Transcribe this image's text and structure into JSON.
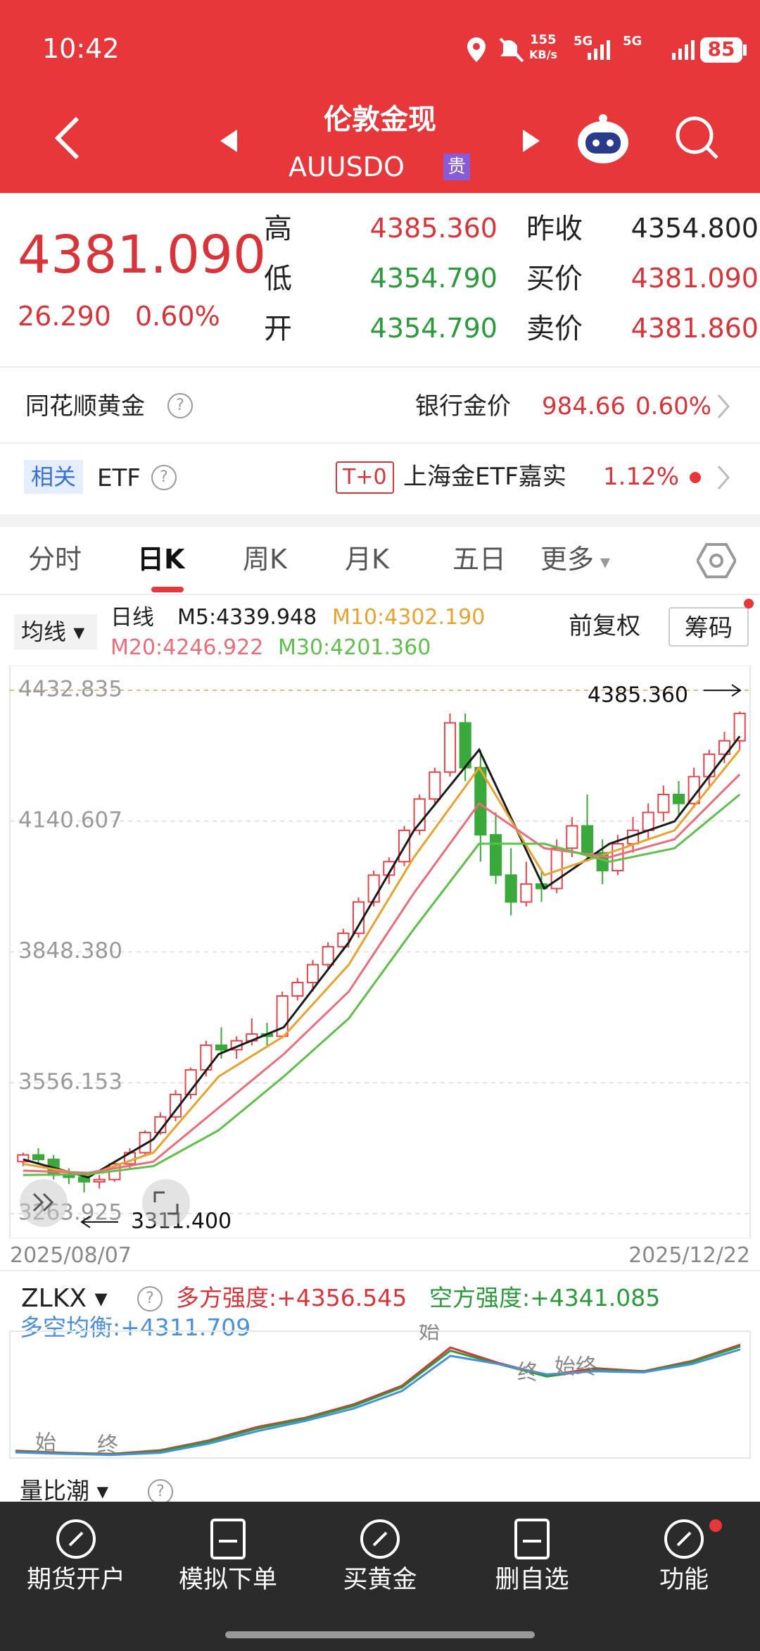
{
  "status": {
    "time": "10:42",
    "speed": "155",
    "speed_unit": "KB/s",
    "net1": "5G",
    "net2": "5G",
    "battery": "85"
  },
  "header": {
    "title": "伦敦金现",
    "code": "AUUSDO",
    "badge": "贵"
  },
  "quote": {
    "price": "4381.090",
    "change": "26.290",
    "pct": "0.60%",
    "rows": [
      [
        {
          "label": "高",
          "value": "4385.360",
          "color": "#d8343a"
        },
        {
          "label": "昨收",
          "value": "4354.800",
          "color": "#222222"
        }
      ],
      [
        {
          "label": "低",
          "value": "4354.790",
          "color": "#2a9a3a"
        },
        {
          "label": "买价",
          "value": "4381.090",
          "color": "#d8343a"
        }
      ],
      [
        {
          "label": "开",
          "value": "4354.790",
          "color": "#2a9a3a"
        },
        {
          "label": "卖价",
          "value": "4381.860",
          "color": "#d8343a"
        }
      ]
    ]
  },
  "gold": {
    "label": "同花顺黄金",
    "help": "?",
    "bank_label": "银行金价",
    "bank_price": "984.66",
    "bank_pct": "0.60%"
  },
  "etf": {
    "tag": "相关",
    "label": "ETF",
    "help": "?",
    "t0": "T+0",
    "name": "上海金ETF嘉实",
    "pct": "1.12%"
  },
  "tabs": {
    "items": [
      "分时",
      "日K",
      "周K",
      "月K",
      "五日",
      "更多"
    ],
    "active": 1
  },
  "ma": {
    "selector": "均线",
    "period": "日线",
    "m5": "M5:4339.948",
    "m10": "M10:4302.190",
    "m20": "M20:4246.922",
    "m30": "M30:4201.360",
    "adjust": "前复权",
    "chip": "筹码"
  },
  "chart_data": [
    {
      "type": "candlestick",
      "ylim": [
        3208.9,
        4487.9
      ],
      "yticks": [
        4432.835,
        4140.607,
        {
          "value": 3848.38,
          "label": "3848.380"
        },
        3556.153,
        3263.925
      ],
      "grid": true,
      "up_color": "#e8424a",
      "down_color": "#3aa83a",
      "high": {
        "value": 4385.36,
        "label": "4385.360"
      },
      "low": {
        "value": 3311.4,
        "label": "3311.400"
      },
      "x_start": "2025/08/07",
      "x_end": "2025/12/22",
      "candles": [
        [
          3380,
          3400,
          3370,
          3395
        ],
        [
          3395,
          3410,
          3375,
          3385
        ],
        [
          3385,
          3395,
          3340,
          3350
        ],
        [
          3350,
          3365,
          3330,
          3345
        ],
        [
          3345,
          3355,
          3311.4,
          3335
        ],
        [
          3335,
          3350,
          3320,
          3340
        ],
        [
          3340,
          3380,
          3335,
          3375
        ],
        [
          3375,
          3410,
          3365,
          3400
        ],
        [
          3400,
          3450,
          3395,
          3445
        ],
        [
          3445,
          3490,
          3440,
          3480
        ],
        [
          3480,
          3540,
          3470,
          3530
        ],
        [
          3530,
          3590,
          3520,
          3585
        ],
        [
          3585,
          3650,
          3570,
          3640
        ],
        [
          3640,
          3680,
          3610,
          3630
        ],
        [
          3630,
          3660,
          3610,
          3650
        ],
        [
          3650,
          3700,
          3640,
          3665
        ],
        [
          3665,
          3690,
          3640,
          3660
        ],
        [
          3660,
          3760,
          3655,
          3750
        ],
        [
          3750,
          3790,
          3740,
          3780
        ],
        [
          3780,
          3830,
          3760,
          3820
        ],
        [
          3820,
          3870,
          3810,
          3860
        ],
        [
          3860,
          3900,
          3850,
          3890
        ],
        [
          3890,
          3970,
          3880,
          3960
        ],
        [
          3960,
          4030,
          3950,
          4020
        ],
        [
          4020,
          4060,
          4000,
          4050
        ],
        [
          4050,
          4130,
          4040,
          4120
        ],
        [
          4120,
          4200,
          4110,
          4190
        ],
        [
          4190,
          4260,
          4180,
          4250
        ],
        [
          4250,
          4381,
          4240,
          4360
        ],
        [
          4360,
          4381,
          4230,
          4260
        ],
        [
          4260,
          4300,
          4050,
          4110
        ],
        [
          4110,
          4160,
          4000,
          4020
        ],
        [
          4020,
          4080,
          3930,
          3960
        ],
        [
          3960,
          4050,
          3950,
          4000
        ],
        [
          4000,
          4030,
          3960,
          3990
        ],
        [
          3990,
          4100,
          3980,
          4080
        ],
        [
          4080,
          4150,
          4060,
          4130
        ],
        [
          4130,
          4200,
          4050,
          4070
        ],
        [
          4070,
          4100,
          4000,
          4030
        ],
        [
          4030,
          4110,
          4020,
          4090
        ],
        [
          4090,
          4150,
          4070,
          4120
        ],
        [
          4120,
          4180,
          4100,
          4160
        ],
        [
          4160,
          4220,
          4140,
          4200
        ],
        [
          4200,
          4230,
          4150,
          4180
        ],
        [
          4180,
          4260,
          4170,
          4240
        ],
        [
          4240,
          4300,
          4220,
          4290
        ],
        [
          4290,
          4340,
          4270,
          4320
        ],
        [
          4320,
          4385.36,
          4300,
          4381.09
        ]
      ],
      "series": [
        {
          "name": "M5",
          "color": "#1a1a1a",
          "values": [
            3385,
            3345,
            3430,
            3620,
            3680,
            3870,
            4120,
            4300,
            3990,
            4090,
            4140,
            4330
          ]
        },
        {
          "name": "M10",
          "color": "#e8a32e",
          "values": [
            3375,
            3350,
            3400,
            3570,
            3660,
            3820,
            4060,
            4260,
            4020,
            4070,
            4120,
            4300
          ]
        },
        {
          "name": "M20",
          "color": "#ec6d7a",
          "values": [
            3360,
            3355,
            3380,
            3500,
            3620,
            3760,
            3980,
            4180,
            4080,
            4060,
            4100,
            4245
          ]
        },
        {
          "name": "M30",
          "color": "#5ec04a",
          "values": [
            3350,
            3352,
            3370,
            3450,
            3570,
            3700,
            3900,
            4090,
            4090,
            4050,
            4080,
            4200
          ]
        }
      ]
    },
    {
      "type": "line",
      "name": "ZLKX",
      "ylim": [
        3260,
        4420
      ],
      "series": [
        {
          "name": "多方强度",
          "color": "#d8343a",
          "values": [
            3330,
            3310,
            3300,
            3335,
            3430,
            3560,
            3650,
            3780,
            3960,
            4330,
            4180,
            4060,
            4130,
            4100,
            4200,
            4357
          ]
        },
        {
          "name": "空方强度",
          "color": "#2a9a3a",
          "values": [
            3320,
            3305,
            3295,
            3325,
            3420,
            3545,
            3640,
            3765,
            3945,
            4300,
            4170,
            4050,
            4115,
            4095,
            4190,
            4341
          ]
        },
        {
          "name": "多空均衡",
          "color": "#4a90d9",
          "values": [
            3315,
            3300,
            3290,
            3310,
            3400,
            3520,
            3620,
            3740,
            3910,
            4250,
            4170,
            4070,
            4100,
            4090,
            4170,
            4312
          ]
        }
      ]
    }
  ],
  "indicator": {
    "name": "ZLKX",
    "help": "?",
    "bull": "多方强度:+4356.545",
    "bear": "空方强度:+4341.085",
    "balance": "多空均衡:+4311.709",
    "notes": [
      "始",
      "终",
      "始",
      "终",
      "始终"
    ]
  },
  "indicator2": {
    "name": "量比潮",
    "help": "?"
  },
  "nav": [
    "期货开户",
    "模拟下单",
    "买黄金",
    "删自选",
    "功能"
  ]
}
